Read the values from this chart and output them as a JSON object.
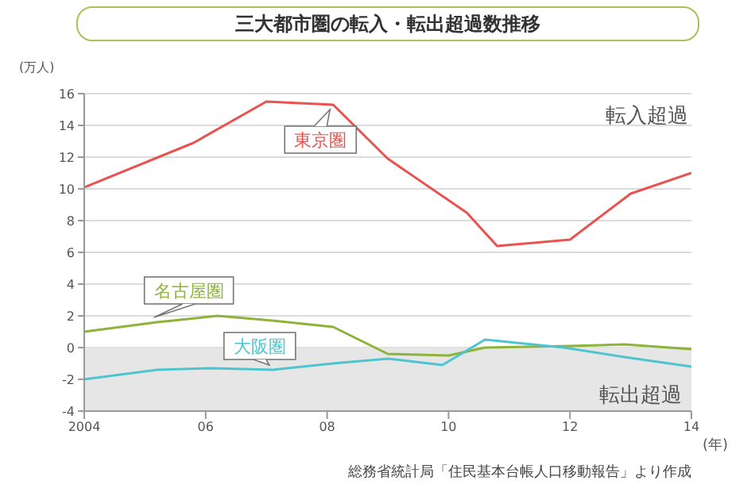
{
  "chart_data": {
    "type": "line",
    "title": "三大都市圏の転入・転出超過数推移",
    "ylabel": "(万人)",
    "xlabel": "(年)",
    "annotations": [
      "転入超過",
      "総務省統計局「住民基本台帳人口移動報告」より作成"
    ],
    "series": [
      {
        "name": "東京圏",
        "color": "#e8534f",
        "x": [
          2004,
          2005.8,
          2007,
          2008.1,
          2009,
          2010.3,
          2010.8,
          2012,
          2013,
          2014
        ],
        "values": [
          10.1,
          12.9,
          15.5,
          15.3,
          11.9,
          8.5,
          6.4,
          6.8,
          9.7,
          11
        ]
      },
      {
        "name": "名古屋圏",
        "color": "#8db33a",
        "x": [
          2004,
          2005.2,
          2006.2,
          2007.1,
          2008.1,
          2009,
          2010,
          2010.6,
          2012,
          2012.9,
          2014
        ],
        "values": [
          1,
          1.6,
          2,
          1.7,
          1.3,
          -0.4,
          -0.5,
          0,
          0.1,
          0.2,
          -0.1
        ]
      },
      {
        "name": "大阪圏",
        "color": "#4fc4cf",
        "x": [
          2004,
          2005.2,
          2006.1,
          2007.1,
          2008.1,
          2009,
          2009.9,
          2010.6,
          2011.9,
          2012.9,
          2014
        ],
        "values": [
          -2,
          -1.4,
          -1.3,
          -1.4,
          -1,
          -0.7,
          -1.1,
          0.5,
          0,
          -0.6,
          -1.2
        ]
      }
    ],
    "xlim": [
      2004,
      2014
    ],
    "xticks": [
      2004,
      {
        "value": 2006,
        "label": "06"
      },
      {
        "value": 2008,
        "label": "08"
      },
      {
        "value": 2010,
        "label": "10"
      },
      {
        "value": 2012,
        "label": "12"
      },
      {
        "value": 2014,
        "label": "14"
      }
    ],
    "ylim": [
      -4,
      16
    ],
    "yticks": [
      -4,
      -2,
      0,
      2,
      4,
      6,
      8,
      10,
      12,
      14,
      16
    ],
    "bands": [
      {
        "axis": "y",
        "from": -4,
        "to": 0,
        "label": "転出超過",
        "color": "#e6e6e6"
      }
    ],
    "grid": "y",
    "marker": "none",
    "line_style": "solid"
  }
}
